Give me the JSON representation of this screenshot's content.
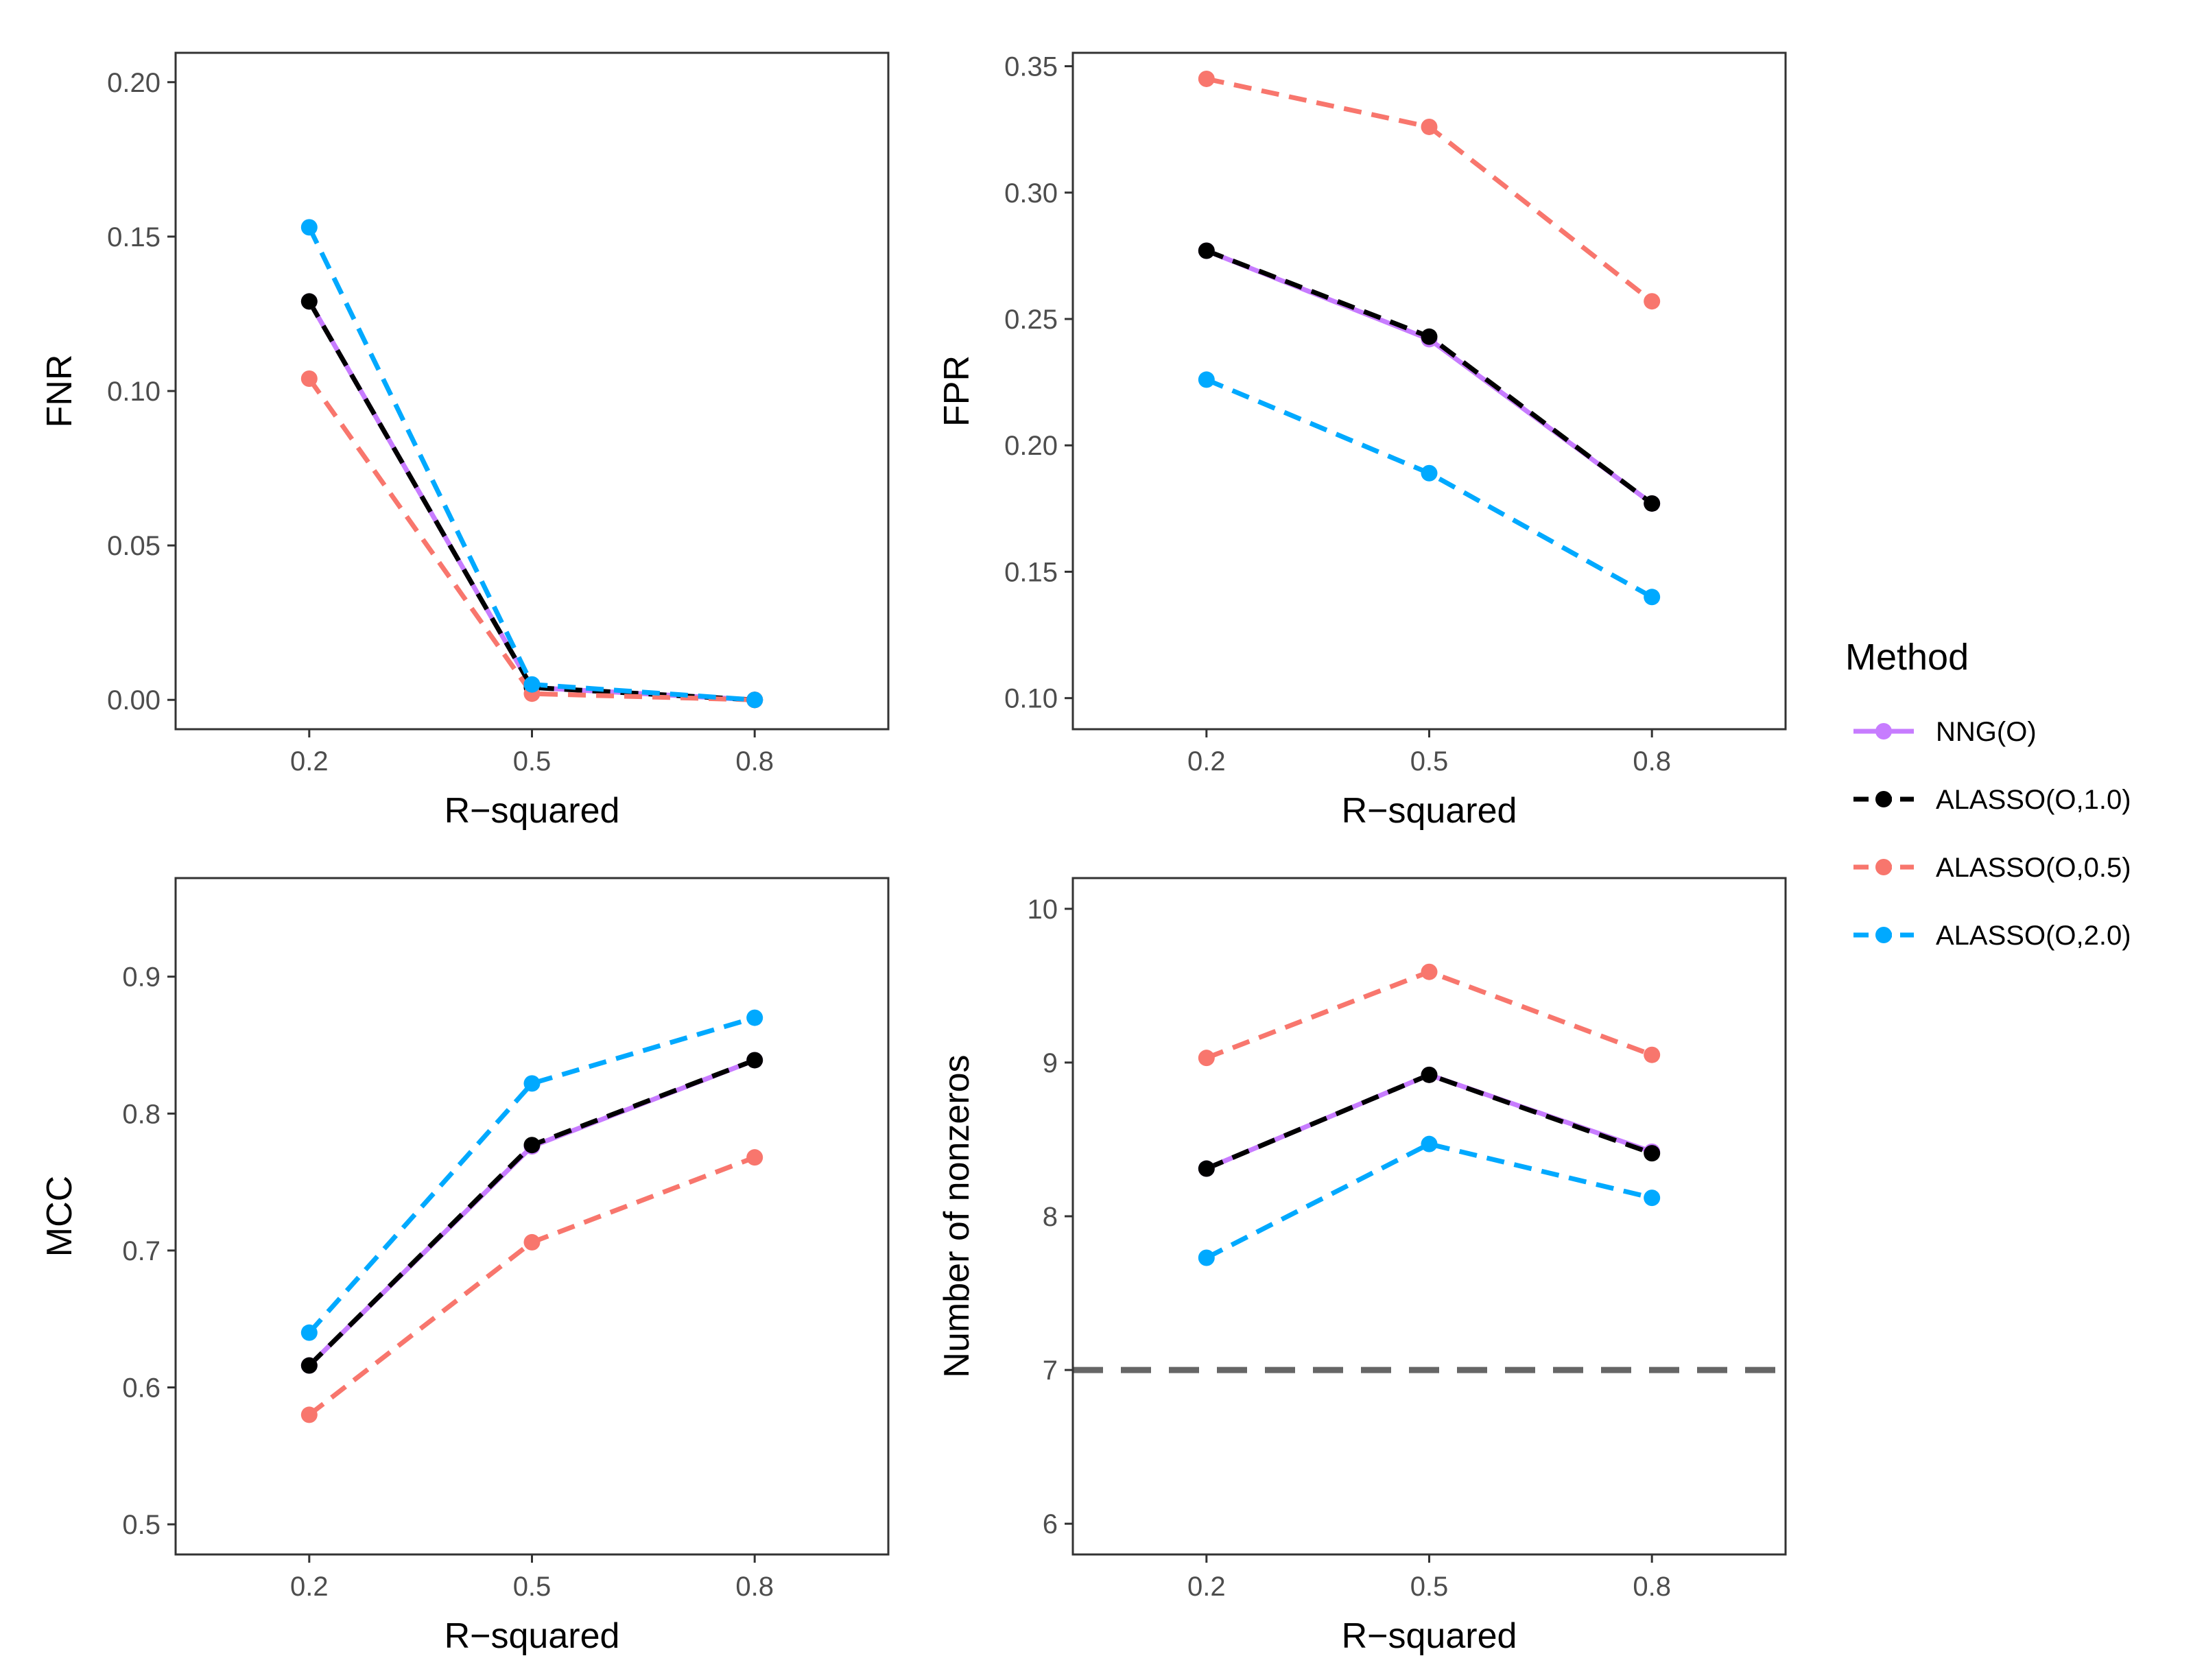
{
  "colors": {
    "NNG(O)": "#c77cff",
    "ALASSO(O,1.0)": "#000000",
    "ALASSO(O,0.5)": "#f8766d",
    "ALASSO(O,2.0)": "#00a9ff",
    "reference": "#666666"
  },
  "legend": {
    "title": "Method",
    "items": [
      {
        "label": "NNG(O)",
        "dash": false
      },
      {
        "label": "ALASSO(O,1.0)",
        "dash": true
      },
      {
        "label": "ALASSO(O,0.5)",
        "dash": true
      },
      {
        "label": "ALASSO(O,2.0)",
        "dash": true
      }
    ]
  },
  "chart_data": [
    {
      "type": "line",
      "id": "fnr",
      "xlabel": "R−squared",
      "ylabel": "FNR",
      "categories": [
        "0.2",
        "0.5",
        "0.8"
      ],
      "ylim": [
        -0.0095,
        0.2095
      ],
      "yticks": [
        0.0,
        0.05,
        0.1,
        0.15,
        0.2
      ],
      "ytick_labels": [
        "0.00",
        "0.05",
        "0.10",
        "0.15",
        "0.20"
      ],
      "series": [
        {
          "name": "NNG(O)",
          "values": [
            0.129,
            0.004,
            0.0
          ]
        },
        {
          "name": "ALASSO(O,1.0)",
          "values": [
            0.129,
            0.004,
            0.0
          ]
        },
        {
          "name": "ALASSO(O,0.5)",
          "values": [
            0.104,
            0.002,
            0.0
          ]
        },
        {
          "name": "ALASSO(O,2.0)",
          "values": [
            0.153,
            0.005,
            0.0
          ]
        }
      ]
    },
    {
      "type": "line",
      "id": "fpr",
      "xlabel": "R−squared",
      "ylabel": "FPR",
      "categories": [
        "0.2",
        "0.5",
        "0.8"
      ],
      "ylim": [
        0.0877,
        0.3553
      ],
      "yticks": [
        0.1,
        0.15,
        0.2,
        0.25,
        0.3,
        0.35
      ],
      "ytick_labels": [
        "0.10",
        "0.15",
        "0.20",
        "0.25",
        "0.30",
        "0.35"
      ],
      "series": [
        {
          "name": "NNG(O)",
          "values": [
            0.277,
            0.242,
            0.177
          ]
        },
        {
          "name": "ALASSO(O,1.0)",
          "values": [
            0.277,
            0.243,
            0.177
          ]
        },
        {
          "name": "ALASSO(O,0.5)",
          "values": [
            0.345,
            0.326,
            0.257
          ]
        },
        {
          "name": "ALASSO(O,2.0)",
          "values": [
            0.226,
            0.189,
            0.14
          ]
        }
      ]
    },
    {
      "type": "line",
      "id": "mcc",
      "xlabel": "R−squared",
      "ylabel": "MCC",
      "categories": [
        "0.2",
        "0.5",
        "0.8"
      ],
      "ylim": [
        0.478,
        0.972
      ],
      "yticks": [
        0.5,
        0.6,
        0.7,
        0.8,
        0.9
      ],
      "ytick_labels": [
        "0.5",
        "0.6",
        "0.7",
        "0.8",
        "0.9"
      ],
      "series": [
        {
          "name": "NNG(O)",
          "values": [
            0.616,
            0.776,
            0.839
          ]
        },
        {
          "name": "ALASSO(O,1.0)",
          "values": [
            0.616,
            0.777,
            0.839
          ]
        },
        {
          "name": "ALASSO(O,0.5)",
          "values": [
            0.58,
            0.706,
            0.768
          ]
        },
        {
          "name": "ALASSO(O,2.0)",
          "values": [
            0.64,
            0.822,
            0.87
          ]
        }
      ]
    },
    {
      "type": "line",
      "id": "nonzeros",
      "xlabel": "R−squared",
      "ylabel": "Number of nonzeros",
      "categories": [
        "0.2",
        "0.5",
        "0.8"
      ],
      "ylim": [
        5.8,
        10.2
      ],
      "yticks": [
        6,
        7,
        8,
        9,
        10
      ],
      "ytick_labels": [
        "6",
        "7",
        "8",
        "9",
        "10"
      ],
      "hline": 7,
      "series": [
        {
          "name": "NNG(O)",
          "values": [
            8.31,
            8.92,
            8.42
          ]
        },
        {
          "name": "ALASSO(O,1.0)",
          "values": [
            8.31,
            8.92,
            8.41
          ]
        },
        {
          "name": "ALASSO(O,0.5)",
          "values": [
            9.03,
            9.59,
            9.05
          ]
        },
        {
          "name": "ALASSO(O,2.0)",
          "values": [
            7.73,
            8.47,
            8.12
          ]
        }
      ]
    }
  ]
}
